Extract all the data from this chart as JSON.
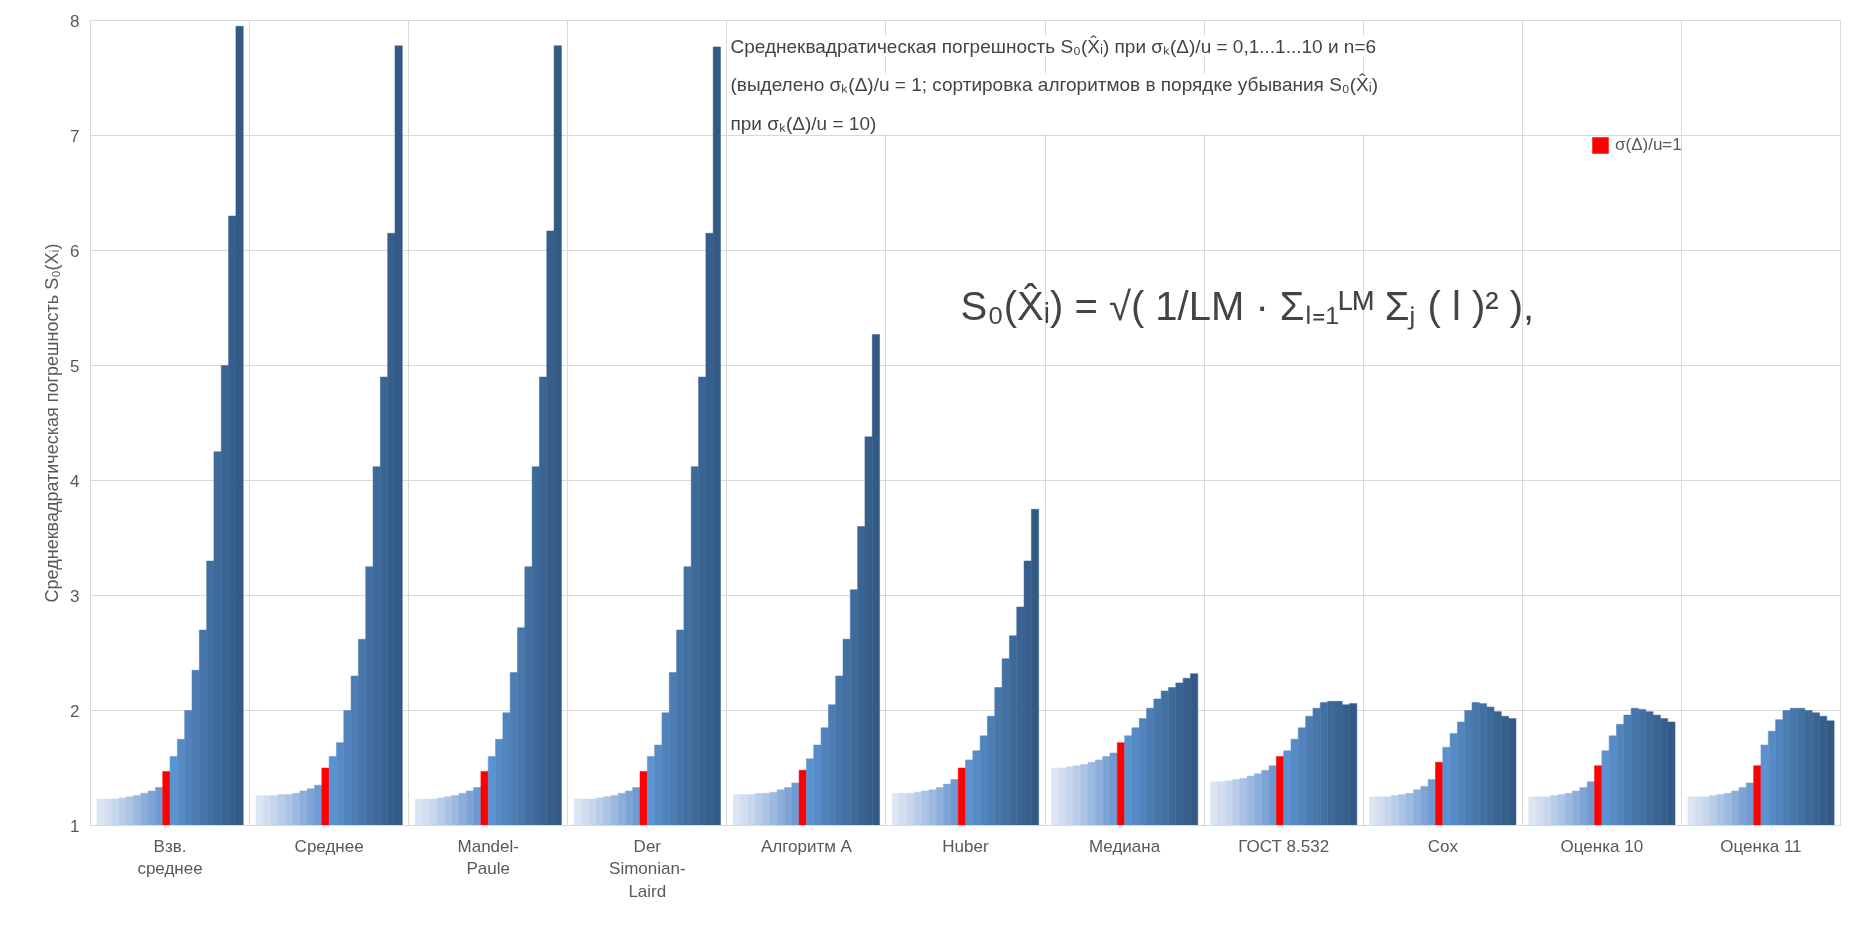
{
  "chart_data": {
    "type": "bar",
    "title": "Среднеквадратическая погрешность S₀(X̂ᵢ) при σₖ(Δ)/u = 0,1...1...10 и n=6",
    "subtitle": "(выделено σₖ(Δ)/u = 1; сортировка алгоритмов в порядке убывания S₀(X̂ᵢ)\nпри σₖ(Δ)/u = 10)",
    "ylabel": "Среднеквадратическая погрешность S₀(Xᵢ)",
    "annotations": [
      "S₀(X̂ᵢ) = √( 1/LM · Σₗ₌₁ᴸᴹ Σⱼ ( l )² ),"
    ],
    "categories": [
      "Взв.\nсреднее",
      "Среднее",
      "Mandel-\nPaule",
      "Der\nSimonian-\nLaird",
      "Алгоритм А",
      "Huber",
      "Медиана",
      "ГОСТ 8.532",
      "Cox",
      "Оценка 10",
      "Оценка 11"
    ],
    "series": [
      {
        "color": "#dce5f2",
        "values": [
          1.23,
          1.26,
          1.23,
          1.23,
          1.27,
          1.28,
          1.5,
          1.38,
          1.25,
          1.25,
          1.25
        ]
      },
      {
        "color": "#d2ddef",
        "values": [
          1.23,
          1.26,
          1.23,
          1.23,
          1.27,
          1.28,
          1.5,
          1.38,
          1.25,
          1.25,
          1.25
        ]
      },
      {
        "color": "#c6d6ec",
        "values": [
          1.23,
          1.26,
          1.23,
          1.23,
          1.27,
          1.28,
          1.51,
          1.39,
          1.25,
          1.25,
          1.25
        ]
      },
      {
        "color": "#b9cde8",
        "values": [
          1.24,
          1.27,
          1.24,
          1.24,
          1.28,
          1.29,
          1.52,
          1.4,
          1.26,
          1.26,
          1.26
        ]
      },
      {
        "color": "#abc3e4",
        "values": [
          1.25,
          1.27,
          1.25,
          1.25,
          1.28,
          1.3,
          1.53,
          1.41,
          1.27,
          1.27,
          1.27
        ]
      },
      {
        "color": "#9cb9e0",
        "values": [
          1.26,
          1.28,
          1.26,
          1.26,
          1.29,
          1.31,
          1.55,
          1.43,
          1.28,
          1.28,
          1.28
        ]
      },
      {
        "color": "#8daedb",
        "values": [
          1.28,
          1.3,
          1.28,
          1.28,
          1.31,
          1.33,
          1.57,
          1.45,
          1.31,
          1.3,
          1.3
        ]
      },
      {
        "color": "#7ea4d6",
        "values": [
          1.3,
          1.32,
          1.3,
          1.3,
          1.33,
          1.36,
          1.6,
          1.48,
          1.34,
          1.33,
          1.33
        ]
      },
      {
        "color": "#6f9ad2",
        "values": [
          1.33,
          1.35,
          1.33,
          1.33,
          1.37,
          1.4,
          1.63,
          1.52,
          1.4,
          1.38,
          1.37
        ]
      },
      {
        "name": "σ(Δ)/u=1",
        "color": "#ff0000",
        "values": [
          1.47,
          1.5,
          1.47,
          1.47,
          1.48,
          1.5,
          1.72,
          1.6,
          1.55,
          1.52,
          1.52
        ]
      },
      {
        "color": "#5b93d1",
        "values": [
          1.6,
          1.6,
          1.6,
          1.6,
          1.58,
          1.57,
          1.78,
          1.65,
          1.68,
          1.65,
          1.7
        ]
      },
      {
        "color": "#568bc6",
        "values": [
          1.75,
          1.72,
          1.75,
          1.7,
          1.7,
          1.65,
          1.85,
          1.75,
          1.8,
          1.78,
          1.82
        ]
      },
      {
        "color": "#5184bc",
        "values": [
          2.0,
          2.0,
          1.98,
          1.98,
          1.85,
          1.78,
          1.93,
          1.85,
          1.9,
          1.88,
          1.92
        ]
      },
      {
        "color": "#4c7db3",
        "values": [
          2.35,
          2.3,
          2.33,
          2.33,
          2.05,
          1.95,
          2.02,
          1.95,
          2.0,
          1.96,
          2.0
        ]
      },
      {
        "color": "#4776aa",
        "values": [
          2.7,
          2.62,
          2.72,
          2.7,
          2.3,
          2.2,
          2.1,
          2.02,
          2.07,
          2.02,
          2.02
        ]
      },
      {
        "color": "#4270a2",
        "values": [
          3.3,
          3.25,
          3.25,
          3.25,
          2.62,
          2.45,
          2.17,
          2.07,
          2.06,
          2.01,
          2.02
        ]
      },
      {
        "color": "#3e6a9a",
        "values": [
          4.25,
          4.12,
          4.12,
          4.12,
          3.05,
          2.65,
          2.2,
          2.08,
          2.03,
          1.99,
          2.0
        ]
      },
      {
        "color": "#3a6493",
        "values": [
          5.0,
          4.9,
          4.9,
          4.9,
          3.6,
          2.9,
          2.24,
          2.08,
          1.99,
          1.96,
          1.98
        ]
      },
      {
        "color": "#365f8c",
        "values": [
          6.3,
          6.15,
          6.17,
          6.15,
          4.38,
          3.3,
          2.28,
          2.05,
          1.95,
          1.93,
          1.95
        ]
      },
      {
        "color": "#335a85",
        "values": [
          7.95,
          7.78,
          7.78,
          7.77,
          5.27,
          3.75,
          2.32,
          2.06,
          1.93,
          1.9,
          1.91
        ]
      }
    ],
    "ylim": [
      1,
      8
    ],
    "yticks": [
      1,
      2,
      3,
      4,
      5,
      6,
      7,
      8
    ],
    "grid": true,
    "legend": "top right"
  }
}
